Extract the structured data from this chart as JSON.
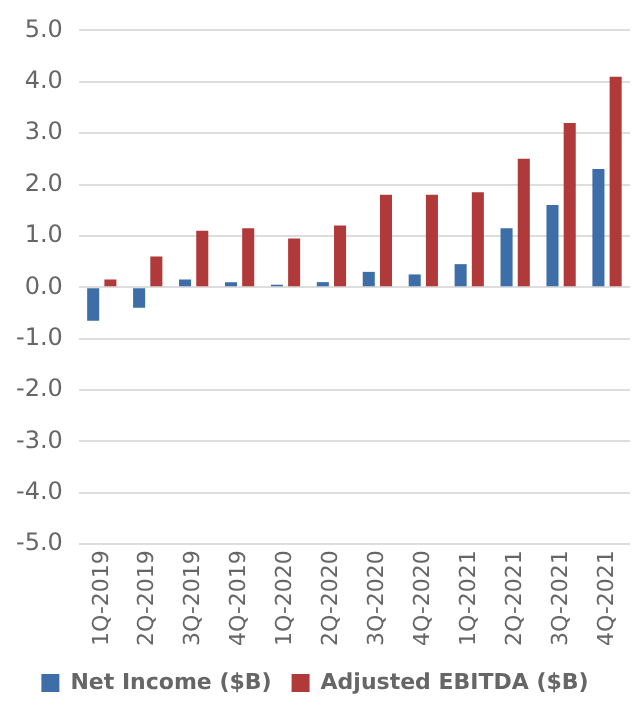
{
  "chart_data": {
    "type": "bar",
    "categories": [
      "1Q-2019",
      "2Q-2019",
      "3Q-2019",
      "4Q-2019",
      "1Q-2020",
      "2Q-2020",
      "3Q-2020",
      "4Q-2020",
      "1Q-2021",
      "2Q-2021",
      "3Q-2021",
      "4Q-2021"
    ],
    "series": [
      {
        "name": "Net Income ($B)",
        "color": "#3d6ea8",
        "values": [
          -0.65,
          -0.4,
          0.15,
          0.1,
          0.05,
          0.1,
          0.3,
          0.25,
          0.45,
          1.15,
          1.6,
          2.3
        ]
      },
      {
        "name": "Adjusted EBITDA ($B)",
        "color": "#b03a3a",
        "values": [
          0.15,
          0.6,
          1.1,
          1.15,
          0.95,
          1.2,
          1.8,
          1.8,
          1.85,
          2.5,
          3.2,
          4.1
        ]
      }
    ],
    "ylim": [
      -5,
      5
    ],
    "yticks": [
      {
        "value": -5,
        "label": "-5.0"
      },
      {
        "value": -4,
        "label": "-4.0"
      },
      {
        "value": -3,
        "label": "-3.0"
      },
      {
        "value": -2,
        "label": "-2.0"
      },
      {
        "value": -1,
        "label": "-1.0"
      },
      {
        "value": 0,
        "label": "0.0"
      },
      {
        "value": 1,
        "label": "1.0"
      },
      {
        "value": 2,
        "label": "2.0"
      },
      {
        "value": 3,
        "label": "3.0"
      },
      {
        "value": 4,
        "label": "4.0"
      },
      {
        "value": 5,
        "label": "5.0"
      }
    ],
    "grid": "y",
    "legend": "bottom"
  }
}
